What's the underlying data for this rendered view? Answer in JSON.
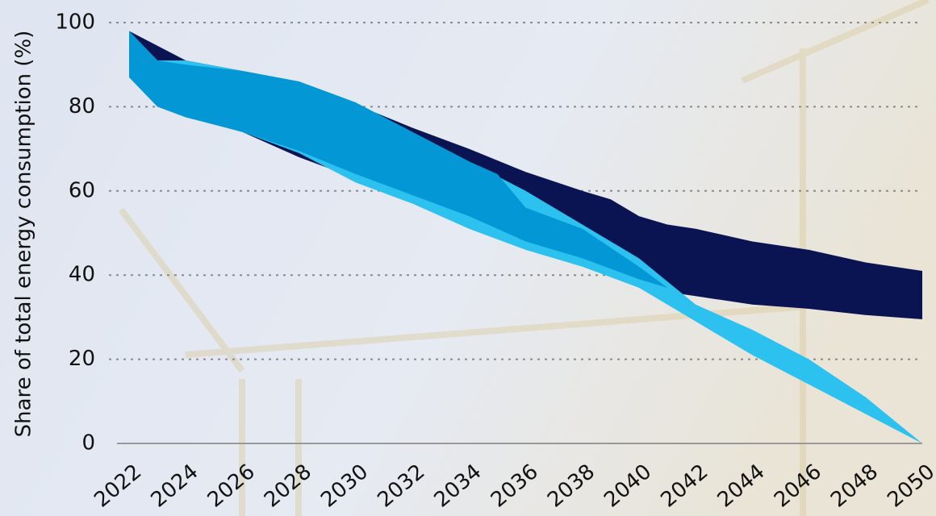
{
  "chart_data": {
    "type": "range-area",
    "y_label": "Share of total energy consumption (%)",
    "xlim": [
      2022,
      2050
    ],
    "xticks": [
      2022,
      2024,
      2026,
      2028,
      2030,
      2032,
      2034,
      2036,
      2038,
      2040,
      2042,
      2044,
      2046,
      2048,
      2050
    ],
    "ylim": [
      0,
      100
    ],
    "yticks": [
      0,
      20,
      40,
      60,
      80,
      100
    ],
    "grid": true,
    "series": [
      {
        "color": "#0b1452",
        "x": [
          2022,
          2024,
          2026,
          2028,
          2030,
          2032,
          2034,
          2036,
          2038,
          2039,
          2040,
          2041,
          2042,
          2044,
          2046,
          2048,
          2050
        ],
        "high": [
          98,
          91,
          88.5,
          86,
          80.5,
          75,
          70,
          64.5,
          60,
          58,
          54,
          52,
          51,
          48,
          46,
          43,
          41
        ],
        "low": [
          87,
          78,
          74,
          68,
          63,
          58,
          53,
          47,
          43,
          41,
          38,
          36,
          35,
          33,
          32,
          30.5,
          29.5
        ]
      },
      {
        "color": "#2cc1ef",
        "x": [
          2022,
          2023,
          2024,
          2026,
          2028,
          2030,
          2032,
          2034,
          2036,
          2038,
          2040,
          2042,
          2044,
          2046,
          2048,
          2050
        ],
        "high": [
          98,
          91,
          91,
          88.5,
          86,
          81,
          74,
          67,
          60,
          52,
          44,
          33,
          27,
          20,
          11,
          0
        ],
        "low": [
          87,
          80,
          78,
          74,
          69,
          62,
          57,
          51,
          46,
          42,
          37,
          29,
          21,
          14,
          7,
          0
        ]
      },
      {
        "color": "#0397d6",
        "x": [
          2022,
          2023,
          2024,
          2026,
          2028,
          2030,
          2032,
          2034,
          2035,
          2036,
          2038,
          2040,
          2041
        ],
        "high": [
          98,
          91,
          90,
          88.5,
          86,
          81,
          74,
          67,
          64,
          56,
          51,
          42,
          37
        ],
        "low": [
          87,
          80,
          77.5,
          74,
          69.5,
          64,
          59,
          54,
          51,
          48,
          44,
          39,
          37
        ]
      }
    ]
  }
}
